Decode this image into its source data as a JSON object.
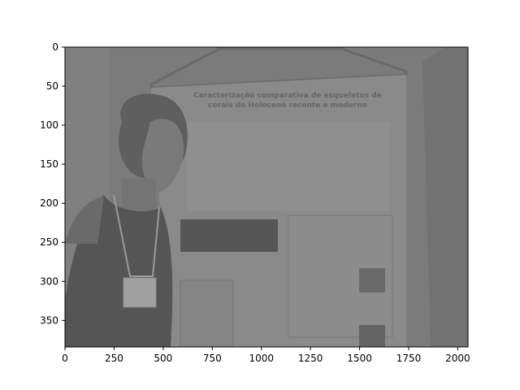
{
  "image": {
    "axes": {
      "x_ticks": [
        "0",
        "250",
        "500",
        "750",
        "1000",
        "1250",
        "1500",
        "1750",
        "2000"
      ],
      "y_ticks": [
        "0",
        "50",
        "100",
        "150",
        "200",
        "250",
        "300",
        "350"
      ]
    },
    "poster": {
      "title_line1": "Caracterização comparativa de esqueletos de",
      "title_line2": "corais do Holoceno recente e moderno"
    },
    "colors": {
      "photo_base": "#7b7b7b",
      "poster": "#8a8a8a",
      "person": "#6c6c6c",
      "dress": "#505050",
      "frame": "#000000"
    }
  }
}
